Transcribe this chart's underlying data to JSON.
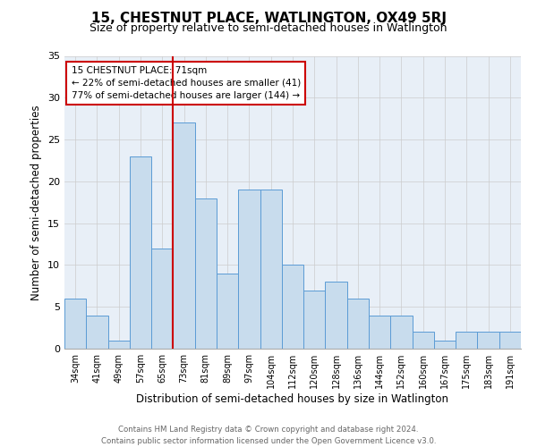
{
  "title": "15, CHESTNUT PLACE, WATLINGTON, OX49 5RJ",
  "subtitle": "Size of property relative to semi-detached houses in Watlington",
  "xlabel": "Distribution of semi-detached houses by size in Watlington",
  "ylabel": "Number of semi-detached properties",
  "categories": [
    "34sqm",
    "41sqm",
    "49sqm",
    "57sqm",
    "65sqm",
    "73sqm",
    "81sqm",
    "89sqm",
    "97sqm",
    "104sqm",
    "112sqm",
    "120sqm",
    "128sqm",
    "136sqm",
    "144sqm",
    "152sqm",
    "160sqm",
    "167sqm",
    "175sqm",
    "183sqm",
    "191sqm"
  ],
  "values": [
    6,
    4,
    1,
    23,
    12,
    27,
    18,
    9,
    19,
    19,
    10,
    7,
    8,
    6,
    4,
    4,
    2,
    1,
    2,
    2,
    2
  ],
  "bar_color": "#c8dced",
  "bar_edge_color": "#5b9bd5",
  "annotation_text_line1": "15 CHESTNUT PLACE: 71sqm",
  "annotation_text_line2": "← 22% of semi-detached houses are smaller (41)",
  "annotation_text_line3": "77% of semi-detached houses are larger (144) →",
  "annotation_box_color": "#ffffff",
  "annotation_box_edge": "#cc0000",
  "vline_color": "#cc0000",
  "vline_x": 5,
  "ylim": [
    0,
    35
  ],
  "yticks": [
    0,
    5,
    10,
    15,
    20,
    25,
    30,
    35
  ],
  "footer": "Contains HM Land Registry data © Crown copyright and database right 2024.\nContains public sector information licensed under the Open Government Licence v3.0.",
  "background_color": "#ffffff",
  "grid_color": "#cccccc",
  "title_fontsize": 11,
  "subtitle_fontsize": 9,
  "xlabel_fontsize": 8.5,
  "ylabel_fontsize": 8.5
}
